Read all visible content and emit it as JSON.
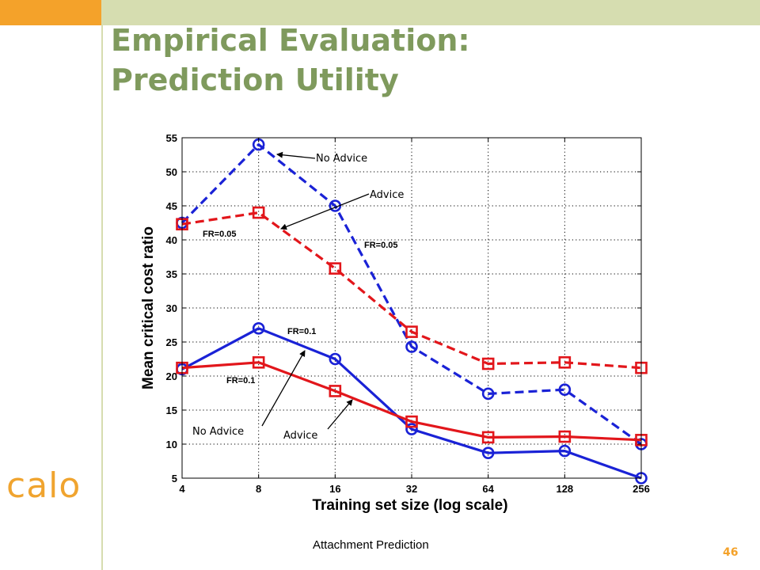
{
  "slide": {
    "title_line1": "Empirical Evaluation:",
    "title_line2": "Prediction Utility",
    "logo_text": "calo",
    "caption": "Attachment Prediction",
    "page_number": "46",
    "colors": {
      "corner": "#f4a22a",
      "band": "#d6ddb0",
      "title": "#7f9a5d",
      "logo": "#f0a42f"
    }
  },
  "chart_data": {
    "type": "line",
    "xlabel": "Training set size (log scale)",
    "ylabel": "Mean critical cost ratio",
    "x_scale": "log2",
    "categories": [
      "4",
      "8",
      "16",
      "32",
      "64",
      "128",
      "256"
    ],
    "x": [
      4,
      8,
      16,
      32,
      64,
      128,
      256
    ],
    "ylim": [
      5,
      55
    ],
    "yticks": [
      5,
      10,
      15,
      20,
      25,
      30,
      35,
      40,
      45,
      50,
      55
    ],
    "grid": true,
    "series": [
      {
        "key": "blue_dashed",
        "color": "#1a22d6",
        "dash": true,
        "marker": "circle",
        "values": [
          42.5,
          54.0,
          45.0,
          24.3,
          17.4,
          18.0,
          10.0
        ]
      },
      {
        "key": "red_dashed",
        "color": "#e2161b",
        "dash": true,
        "marker": "square",
        "values": [
          42.3,
          44.0,
          35.8,
          26.5,
          21.8,
          22.0,
          21.2
        ]
      },
      {
        "key": "blue_solid",
        "color": "#1a22d6",
        "dash": false,
        "marker": "circle",
        "values": [
          21.0,
          27.0,
          22.5,
          12.2,
          8.7,
          9.0,
          5.0
        ]
      },
      {
        "key": "red_solid",
        "color": "#e2161b",
        "dash": false,
        "marker": "square",
        "values": [
          21.2,
          22.0,
          17.8,
          13.3,
          11.0,
          11.1,
          10.6
        ]
      }
    ],
    "annotations": {
      "no_advice_top": "No Advice",
      "advice_top": "Advice",
      "fr005_left": "FR=0.05",
      "fr005_right": "FR=0.05",
      "fr01_upper": "FR=0.1",
      "fr01_lower": "FR=0.1",
      "no_advice_bottom": "No Advice",
      "advice_bottom": "Advice"
    }
  }
}
